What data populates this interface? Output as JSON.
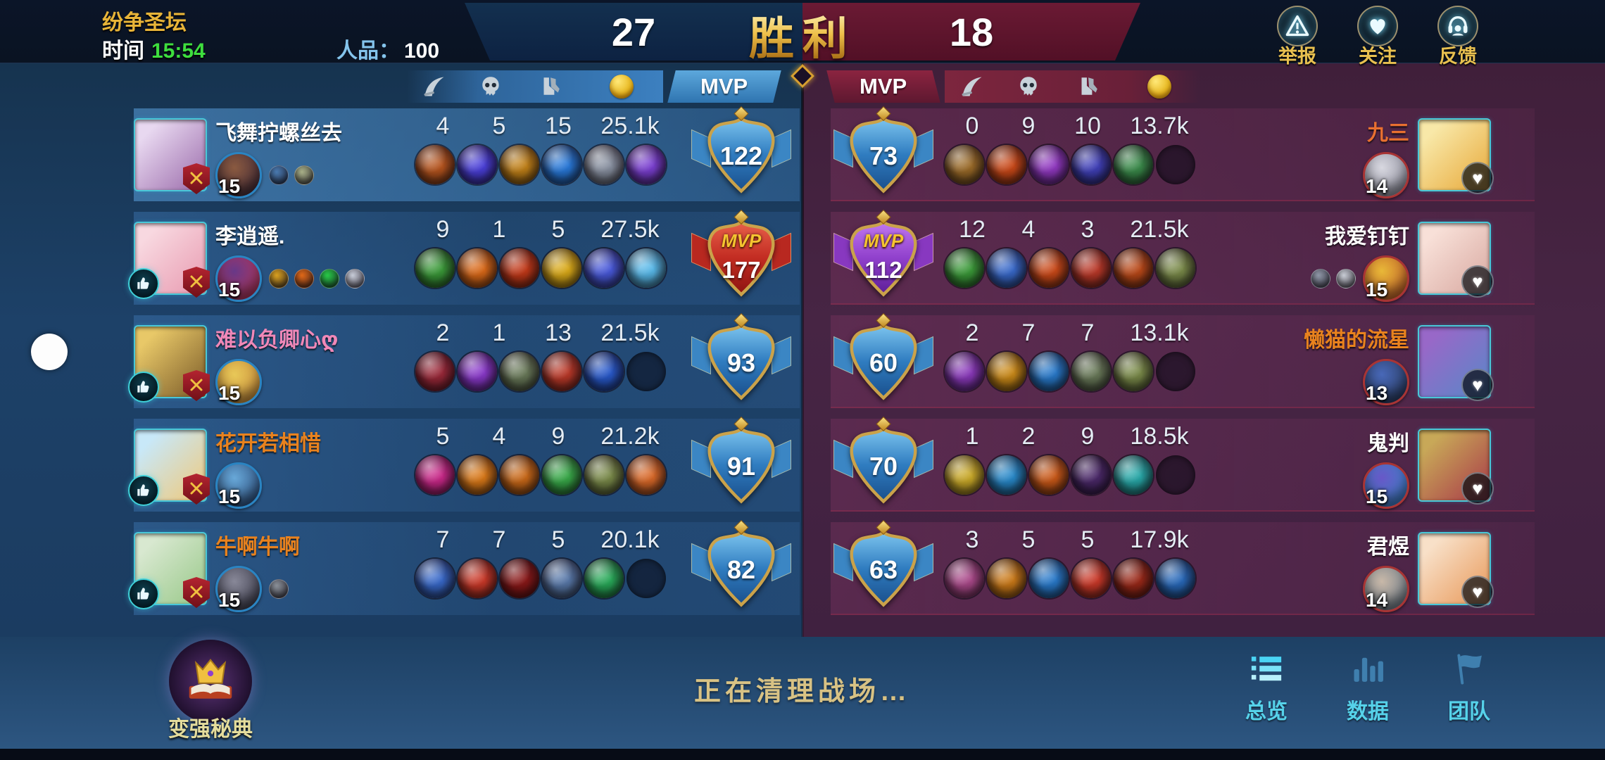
{
  "top_bar": {
    "mode_name": "纷争圣坛",
    "time_label": "时间",
    "time_value": "15:54",
    "karma_label": "人品：",
    "karma_value": "100",
    "left_score": "27",
    "result_text": "胜利",
    "right_score": "18",
    "report_label": "举报",
    "follow_label": "关注",
    "feedback_label": "反馈"
  },
  "header": {
    "mvp_label": "MVP"
  },
  "icons": {
    "kills_column": "curved-blade",
    "deaths_column": "skull",
    "assists_column": "boots",
    "gold_column": "gold-coin",
    "report": "warning-triangle",
    "follow": "heart",
    "feedback": "headset",
    "overview_tab": "list",
    "data_tab": "bar-chart",
    "team_tab": "flag",
    "codex": "crown-on-book",
    "like": "thumbs-up",
    "avatar_badge": "crossed-swords",
    "friend": "heart-button"
  },
  "colors": {
    "accent_gold": "#e8b438",
    "time_green": "#3ede3e",
    "karma_blue": "#84c4ec",
    "left_team_bg": "#1d4168",
    "right_team_bg": "#452442",
    "victory_gold": "#eec04a",
    "tab_active_cyan": "#4ad4f4",
    "badge_blue": "#2f7cc0",
    "mvp_red": "#c23028",
    "mvp_purple": "#8a3cc8"
  },
  "teams": {
    "left": [
      {
        "name": "飞舞拧螺丝去",
        "name_color": "#ffffff",
        "level": "15",
        "kills": "4",
        "deaths": "5",
        "assists": "15",
        "gold": "25.1k",
        "rating": "122",
        "badge": "blue",
        "liked": false,
        "medals": [
          "#4a7ab0",
          "#a8b088"
        ],
        "items": [
          "#b5541e",
          "#4a3fd8",
          "#c08018",
          "#2878d8",
          "#8890a0",
          "#7a3fd0"
        ],
        "empty_slots": 0,
        "avatar": [
          "#e8d8f0",
          "#9a6aaa"
        ],
        "hero": [
          "#8a5a40",
          "#402838"
        ]
      },
      {
        "name": "李逍遥.",
        "name_color": "#ffffff",
        "level": "15",
        "kills": "9",
        "deaths": "1",
        "assists": "5",
        "gold": "27.5k",
        "rating": "177",
        "badge": "mvp-red",
        "liked": true,
        "medals": [
          "#d8a020",
          "#e06818",
          "#28c848",
          "#c8ccd8"
        ],
        "items": [
          "#3a9838",
          "#d86818",
          "#c03818",
          "#d8a818",
          "#4858d8",
          "#58b8e8"
        ],
        "empty_slots": 0,
        "avatar": [
          "#f8d8e0",
          "#e89ab0"
        ],
        "hero": [
          "#683888",
          "#c03858"
        ]
      },
      {
        "name": "难以负卿心ღ",
        "name_color": "#f088b8",
        "level": "15",
        "kills": "2",
        "deaths": "1",
        "assists": "13",
        "gold": "21.5k",
        "rating": "93",
        "badge": "blue",
        "liked": true,
        "medals": [],
        "items": [
          "#982838",
          "#8838c8",
          "#687858",
          "#b83828",
          "#2858c8"
        ],
        "empty_slots": 1,
        "avatar": [
          "#e8c868",
          "#7a5a28"
        ],
        "hero": [
          "#e8c858",
          "#c88838"
        ]
      },
      {
        "name": "花开若相惜",
        "name_color": "#e8821e",
        "level": "15",
        "kills": "5",
        "deaths": "4",
        "assists": "9",
        "gold": "21.2k",
        "rating": "91",
        "badge": "blue",
        "liked": true,
        "medals": [],
        "items": [
          "#c82888",
          "#d87818",
          "#c86818",
          "#38a848",
          "#788848",
          "#d86828"
        ],
        "empty_slots": 0,
        "avatar": [
          "#c8e8f8",
          "#f0c878"
        ],
        "hero": [
          "#68a8d8",
          "#284878"
        ]
      },
      {
        "name": "牛啊牛啊",
        "name_color": "#e8821e",
        "level": "15",
        "kills": "7",
        "deaths": "7",
        "assists": "5",
        "gold": "20.1k",
        "rating": "82",
        "badge": "blue",
        "liked": true,
        "medals": [
          "#8a9098"
        ],
        "items": [
          "#3868c8",
          "#c83828",
          "#881818",
          "#5878a8",
          "#28a858"
        ],
        "empty_slots": 1,
        "avatar": [
          "#d8e8d0",
          "#98c888"
        ],
        "hero": [
          "#888898",
          "#383848"
        ]
      }
    ],
    "right": [
      {
        "name": "九三",
        "name_color": "#e87030",
        "level": "14",
        "kills": "0",
        "deaths": "9",
        "assists": "10",
        "gold": "13.7k",
        "rating": "73",
        "badge": "blue",
        "liked": false,
        "medals": [],
        "items": [
          "#9a6a28",
          "#c84818",
          "#9038c0",
          "#4040b8",
          "#3a8a4a"
        ],
        "empty_slots": 1,
        "avatar": [
          "#f8e8a8",
          "#e8a838"
        ],
        "hero": [
          "#d8d8e0",
          "#888898"
        ]
      },
      {
        "name": "我爱钉钉",
        "name_color": "#ffffff",
        "level": "15",
        "kills": "12",
        "deaths": "4",
        "assists": "3",
        "gold": "21.5k",
        "rating": "112",
        "badge": "mvp-purple",
        "liked": false,
        "medals": [
          "#9098a8",
          "#c8ccd4"
        ],
        "items": [
          "#3a9838",
          "#3868c8",
          "#c84818",
          "#b83828",
          "#b84818",
          "#788848"
        ],
        "empty_slots": 0,
        "avatar": [
          "#f8e0d8",
          "#d8a8a0"
        ],
        "hero": [
          "#e8b838",
          "#c05828"
        ]
      },
      {
        "name": "懒猫的流星",
        "name_color": "#e8821e",
        "level": "13",
        "kills": "2",
        "deaths": "7",
        "assists": "7",
        "gold": "13.1k",
        "rating": "60",
        "badge": "blue",
        "liked": false,
        "medals": [],
        "items": [
          "#8838b8",
          "#c88818",
          "#2878c8",
          "#687858",
          "#788848"
        ],
        "empty_slots": 1,
        "avatar": [
          "#9868c8",
          "#5888c8"
        ],
        "hero": [
          "#4868b8",
          "#283858"
        ]
      },
      {
        "name": "鬼判",
        "name_color": "#ffffff",
        "level": "15",
        "kills": "1",
        "deaths": "2",
        "assists": "9",
        "gold": "18.5k",
        "rating": "70",
        "badge": "blue",
        "liked": false,
        "medals": [],
        "items": [
          "#c8a828",
          "#2888c8",
          "#c85818",
          "#4a2868",
          "#28a8a8"
        ],
        "empty_slots": 1,
        "avatar": [
          "#c8a858",
          "#a83848"
        ],
        "hero": [
          "#6858c8",
          "#3888c8"
        ]
      },
      {
        "name": "君煜",
        "name_color": "#ffffff",
        "level": "14",
        "kills": "3",
        "deaths": "5",
        "assists": "5",
        "gold": "17.9k",
        "rating": "63",
        "badge": "blue",
        "liked": false,
        "medals": [],
        "items": [
          "#a84888",
          "#c87818",
          "#2878c8",
          "#c83828",
          "#982818",
          "#2868b8"
        ],
        "empty_slots": 0,
        "avatar": [
          "#f8e0c8",
          "#e89858"
        ],
        "hero": [
          "#c8b8a8",
          "#687888"
        ]
      }
    ]
  },
  "footer": {
    "codex_label": "变强秘典",
    "status_text": "正在清理战场…",
    "tab_overview": "总览",
    "tab_data": "数据",
    "tab_team": "团队"
  }
}
